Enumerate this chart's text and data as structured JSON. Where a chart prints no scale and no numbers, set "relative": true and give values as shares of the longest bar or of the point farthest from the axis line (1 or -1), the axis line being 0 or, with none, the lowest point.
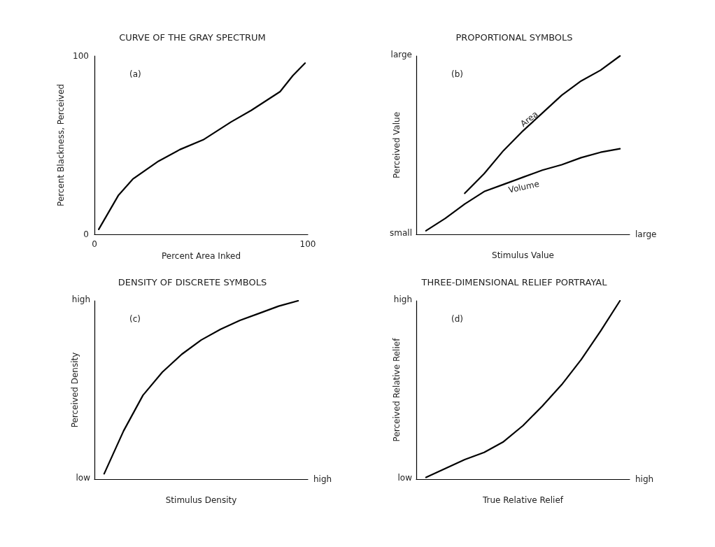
{
  "chart_data": [
    {
      "type": "line",
      "title": "CURVE OF THE GRAY SPECTRUM",
      "xlabel": "Percent Area Inked",
      "ylabel": "Percent Blackness, Perceived",
      "annotations": [
        "(a)"
      ],
      "x": [
        2,
        11.3,
        18,
        30,
        40,
        51,
        64,
        73.5,
        87,
        93,
        98.7
      ],
      "series": [
        {
          "color": "#000000",
          "values": [
            2.8,
            22,
            31,
            41,
            47.5,
            53,
            63,
            69.5,
            80,
            89,
            96
          ]
        }
      ],
      "xlim": [
        0,
        100
      ],
      "xticks": [
        0,
        100
      ],
      "ylim": [
        0,
        100
      ],
      "yticks": [
        0,
        100
      ],
      "grid": false,
      "legend": false
    },
    {
      "type": "line",
      "title": "PROPORTIONAL SYMBOLS",
      "xlabel": "Stimulus Value",
      "ylabel": "Perceived Value",
      "annotations": [
        "(b)",
        "small",
        "large",
        "large"
      ],
      "relative": true,
      "categories": [
        null,
        null,
        null,
        null,
        null,
        null,
        null,
        null,
        null,
        null,
        null
      ],
      "series": [
        {
          "name": "Area",
          "color": "#000000",
          "values": [
            null,
            null,
            0.23,
            0.34,
            0.47,
            0.58,
            0.68,
            0.78,
            0.86,
            0.92,
            1
          ]
        },
        {
          "name": "Volume",
          "color": "#000000",
          "values": [
            0.02,
            0.09,
            0.17,
            0.24,
            0.28,
            0.32,
            0.36,
            0.39,
            0.43,
            0.46,
            0.48
          ]
        }
      ],
      "grid": false,
      "legend": false
    },
    {
      "type": "line",
      "title": "DENSITY OF DISCRETE SYMBOLS",
      "xlabel": "Stimulus Density",
      "ylabel": "Perceived Density",
      "annotations": [
        "(c)",
        "low",
        "high",
        "high"
      ],
      "relative": true,
      "categories": [
        null,
        null,
        null,
        null,
        null,
        null,
        null,
        null,
        null,
        null,
        null
      ],
      "series": [
        {
          "color": "#000000",
          "values": [
            0.03,
            0.27,
            0.47,
            0.6,
            0.7,
            0.78,
            0.84,
            0.89,
            0.93,
            0.97,
            1
          ]
        }
      ],
      "grid": false,
      "legend": false
    },
    {
      "type": "line",
      "title": "THREE-DIMENSIONAL RELIEF PORTRAYAL",
      "xlabel": "True Relative Relief",
      "ylabel": "Perceived Relative Relief",
      "annotations": [
        "(d)",
        "low",
        "high",
        "high"
      ],
      "relative": true,
      "categories": [
        null,
        null,
        null,
        null,
        null,
        null,
        null,
        null,
        null,
        null,
        null
      ],
      "series": [
        {
          "color": "#000000",
          "values": [
            0.01,
            0.06,
            0.11,
            0.15,
            0.21,
            0.3,
            0.41,
            0.53,
            0.67,
            0.83,
            1
          ]
        }
      ],
      "grid": false,
      "legend": false
    }
  ]
}
